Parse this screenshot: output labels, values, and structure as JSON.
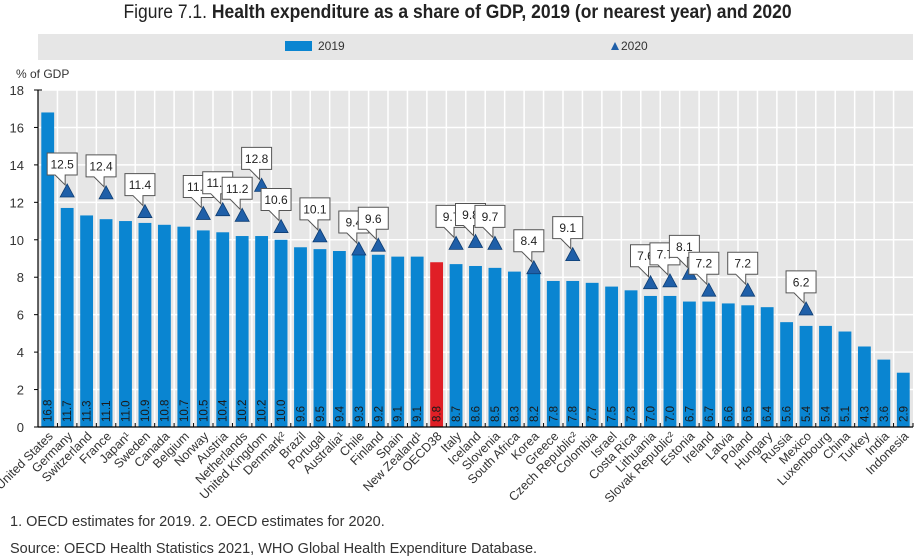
{
  "figure": {
    "title_prefix": "Figure 7.1.",
    "title_main": "Health expenditure as a share of GDP, 2019 (or nearest year) and 2020",
    "footnote": "1. OECD estimates for 2019. 2. OECD estimates for 2020.",
    "source": "Source: OECD Health Statistics 2021, WHO Global Health Expenditure Database."
  },
  "colors": {
    "bar": "#0a85d1",
    "highlight_bar": "#e01f26",
    "marker": "#1f5fa8",
    "plot_bg": "#e6e6e6",
    "grid": "#ffffff"
  },
  "chart_data": {
    "type": "bar",
    "title": "Health expenditure as a share of GDP, 2019 (or nearest year) and 2020",
    "xlabel": "",
    "ylabel": "% of GDP",
    "ylim": [
      0,
      18
    ],
    "yticks": [
      0,
      2,
      4,
      6,
      8,
      10,
      12,
      14,
      16,
      18
    ],
    "grid": true,
    "legend_position": "top",
    "highlight_category": "OECD38",
    "categories": [
      "United States",
      "Germany",
      "Switzerland",
      "France",
      "Japan¹",
      "Sweden",
      "Canada",
      "Belgium",
      "Norway",
      "Austria",
      "Netherlands",
      "United Kingdom",
      "Denmark²",
      "Brazil",
      "Portugal",
      "Australia¹",
      "Chile",
      "Finland",
      "Spain",
      "New Zealand¹",
      "OECD38",
      "Italy",
      "Iceland",
      "Slovenia",
      "South Africa",
      "Korea",
      "Greece",
      "Czech Republic²",
      "Colombia",
      "Israel",
      "Costa Rica",
      "Lithuania",
      "Slovak Republic²",
      "Estonia",
      "Ireland",
      "Latvia",
      "Poland",
      "Hungary",
      "Russia",
      "Mexico",
      "Luxembourg",
      "China",
      "Turkey",
      "India",
      "Indonesia"
    ],
    "series": [
      {
        "name": "2019",
        "type": "bar",
        "values": [
          16.8,
          11.7,
          11.3,
          11.1,
          11.0,
          10.9,
          10.8,
          10.7,
          10.5,
          10.4,
          10.2,
          10.2,
          10.0,
          9.6,
          9.5,
          9.4,
          9.3,
          9.2,
          9.1,
          9.1,
          8.8,
          8.7,
          8.6,
          8.5,
          8.3,
          8.2,
          7.8,
          7.8,
          7.7,
          7.5,
          7.3,
          7.0,
          7.0,
          6.7,
          6.7,
          6.6,
          6.5,
          6.4,
          5.6,
          5.4,
          5.4,
          5.1,
          4.3,
          3.6,
          2.9
        ]
      },
      {
        "name": "2020",
        "type": "marker",
        "values": [
          null,
          12.5,
          null,
          12.4,
          null,
          11.4,
          null,
          null,
          11.3,
          11.5,
          11.2,
          12.8,
          10.6,
          null,
          10.1,
          null,
          9.4,
          9.6,
          null,
          null,
          null,
          9.7,
          9.8,
          9.7,
          null,
          8.4,
          null,
          9.1,
          null,
          null,
          null,
          7.6,
          7.7,
          8.1,
          7.2,
          null,
          7.2,
          null,
          null,
          6.2,
          null,
          null,
          null,
          null,
          null
        ]
      }
    ]
  }
}
